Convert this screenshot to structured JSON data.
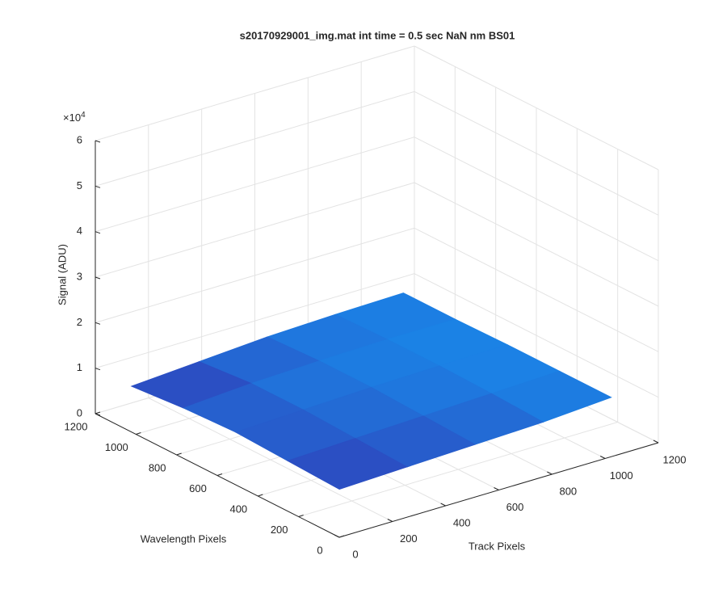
{
  "chart_data": {
    "type": "surface3d",
    "title": "s20170929001_img.mat int time = 0.5 sec  NaN nm BS01",
    "xlabel": "Track Pixels",
    "ylabel": "Wavelength Pixels",
    "zlabel": "Signal (ADU)",
    "z_multiplier": {
      "base": "×10",
      "power": "4"
    },
    "xlim": [
      0,
      1200
    ],
    "xticks": [
      0,
      200,
      400,
      600,
      800,
      1000,
      1200
    ],
    "ylim": [
      0,
      1200
    ],
    "yticks": [
      0,
      200,
      400,
      600,
      800,
      1000,
      1200
    ],
    "zlim": [
      0,
      60000
    ],
    "zticks": [
      {
        "value": 0,
        "label": "0"
      },
      {
        "value": 10000,
        "label": "1"
      },
      {
        "value": 20000,
        "label": "2"
      },
      {
        "value": 30000,
        "label": "3"
      },
      {
        "value": 40000,
        "label": "4"
      },
      {
        "value": 50000,
        "label": "5"
      },
      {
        "value": 60000,
        "label": "6"
      }
    ],
    "grid": true,
    "colors": [
      "#3434b0",
      "#1a86e8"
    ],
    "x": [
      1,
      256,
      512,
      768,
      1024
    ],
    "y": [
      1,
      256,
      512,
      768,
      1024
    ],
    "z": [
      [
        10500,
        11000,
        11500,
        12000,
        13000
      ],
      [
        11000,
        11500,
        12000,
        12500,
        13000
      ],
      [
        11500,
        12000,
        12500,
        12800,
        13000
      ],
      [
        11000,
        12000,
        12500,
        12800,
        12800
      ],
      [
        10000,
        11000,
        12000,
        12500,
        12800
      ]
    ]
  }
}
